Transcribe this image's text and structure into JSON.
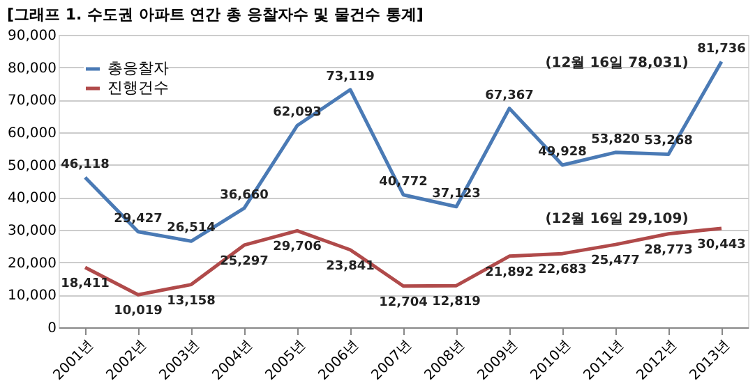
{
  "chart_data": {
    "type": "line",
    "title": "[그래프 1. 수도권 아파트 연간 총 응찰자수 및 물건수 통계]",
    "categories": [
      "2001년",
      "2002년",
      "2003년",
      "2004년",
      "2005년",
      "2006년",
      "2007년",
      "2008년",
      "2009년",
      "2010년",
      "2011년",
      "2012년",
      "2013년"
    ],
    "series": [
      {
        "name": "총응찰자",
        "color": "#4a7ab5",
        "values": [
          46118,
          29427,
          26514,
          36660,
          62093,
          73119,
          40772,
          37123,
          67367,
          49928,
          53820,
          53268,
          81736
        ],
        "value_labels": [
          "46,118",
          "29,427",
          "26,514",
          "36,660",
          "62,093",
          "73,119",
          "40,772",
          "37,123",
          "67,367",
          "49,928",
          "53,820",
          "53,268",
          "81,736"
        ]
      },
      {
        "name": "진행건수",
        "color": "#b04a4a",
        "values": [
          18411,
          10019,
          13158,
          25297,
          29706,
          23841,
          12704,
          12819,
          21892,
          22683,
          25477,
          28773,
          30443
        ],
        "value_labels": [
          "18,411",
          "10,019",
          "13,158",
          "25,297",
          "29,706",
          "23,841",
          "12,704",
          "12,819",
          "21,892",
          "22,683",
          "25,477",
          "28,773",
          "30,443"
        ]
      }
    ],
    "ylim": [
      0,
      90000
    ],
    "yticks": [
      0,
      {
        "value": 10000,
        "label": "10,000"
      },
      {
        "value": 20000,
        "label": "20,000"
      },
      {
        "value": 30000,
        "label": "30,000"
      },
      {
        "value": 40000,
        "label": "40,000"
      },
      {
        "value": 50000,
        "label": "50,000"
      },
      {
        "value": 60000,
        "label": "60,000"
      },
      {
        "value": 70000,
        "label": "70,000"
      },
      {
        "value": 80000,
        "label": "80,000"
      },
      {
        "value": 90000,
        "label": "90,000"
      }
    ],
    "grid": "y",
    "data_labels": true,
    "legend": "top left",
    "marker": "none",
    "line_style": "solid",
    "annotations": [
      "(12월 16일 78,031)",
      "(12월 16일 29,109)"
    ]
  }
}
